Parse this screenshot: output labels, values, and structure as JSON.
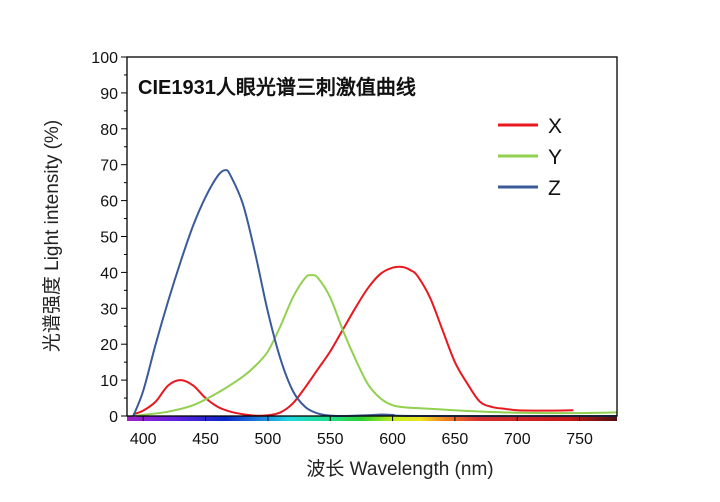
{
  "chart_data": {
    "type": "line",
    "title": "CIE1931人眼光谱三刺激值曲线",
    "xlabel": "波长 Wavelength (nm)",
    "ylabel": "光谱强度 Light intensity (%)",
    "xlim": [
      387,
      780
    ],
    "ylim": [
      0,
      100
    ],
    "xticks": [
      400,
      450,
      500,
      550,
      600,
      650,
      700,
      750
    ],
    "yticks": [
      0,
      10,
      20,
      30,
      40,
      50,
      60,
      70,
      80,
      90,
      100
    ],
    "legend_position": "top-right",
    "series": [
      {
        "name": "X",
        "color": "#e8191e",
        "x": [
          392,
          400,
          410,
          420,
          430,
          440,
          450,
          460,
          470,
          480,
          490,
          500,
          510,
          520,
          530,
          540,
          550,
          560,
          570,
          580,
          590,
          600,
          608,
          615,
          620,
          630,
          640,
          650,
          660,
          670,
          680,
          690,
          700,
          720,
          745
        ],
        "y": [
          0.5,
          1.5,
          4,
          8.5,
          10,
          8.5,
          5,
          2.5,
          1.2,
          0.5,
          0.1,
          0.2,
          1,
          3.5,
          8,
          13,
          18,
          24,
          30,
          35.5,
          39.5,
          41.3,
          41.5,
          40.5,
          39,
          33,
          24,
          15,
          9,
          4,
          2.5,
          2,
          1.6,
          1.5,
          1.6
        ]
      },
      {
        "name": "Y",
        "color": "#92d050",
        "x": [
          392,
          400,
          420,
          440,
          460,
          480,
          490,
          500,
          510,
          520,
          530,
          535,
          540,
          550,
          560,
          570,
          580,
          590,
          600,
          610,
          620,
          640,
          660,
          700,
          740,
          780
        ],
        "y": [
          0,
          0.3,
          1.2,
          3,
          6.5,
          11,
          14,
          18,
          25,
          33,
          38.5,
          39.2,
          38.5,
          33,
          24,
          16,
          9,
          5,
          3,
          2.4,
          2.2,
          1.8,
          1.4,
          0.9,
          0.8,
          1
        ]
      },
      {
        "name": "Z",
        "color": "#3a5a9a",
        "x": [
          392,
          400,
          410,
          420,
          430,
          440,
          450,
          460,
          466,
          470,
          480,
          490,
          500,
          510,
          520,
          530,
          540,
          550,
          560,
          580,
          590,
          600,
          620,
          780
        ],
        "y": [
          0,
          7,
          20,
          32,
          43,
          53,
          61,
          67,
          68.5,
          67,
          59,
          45,
          29,
          16,
          7,
          2.5,
          0.7,
          0.1,
          0,
          0.2,
          0.4,
          0.3,
          0,
          0
        ]
      }
    ],
    "colorbar": "visible spectrum"
  }
}
